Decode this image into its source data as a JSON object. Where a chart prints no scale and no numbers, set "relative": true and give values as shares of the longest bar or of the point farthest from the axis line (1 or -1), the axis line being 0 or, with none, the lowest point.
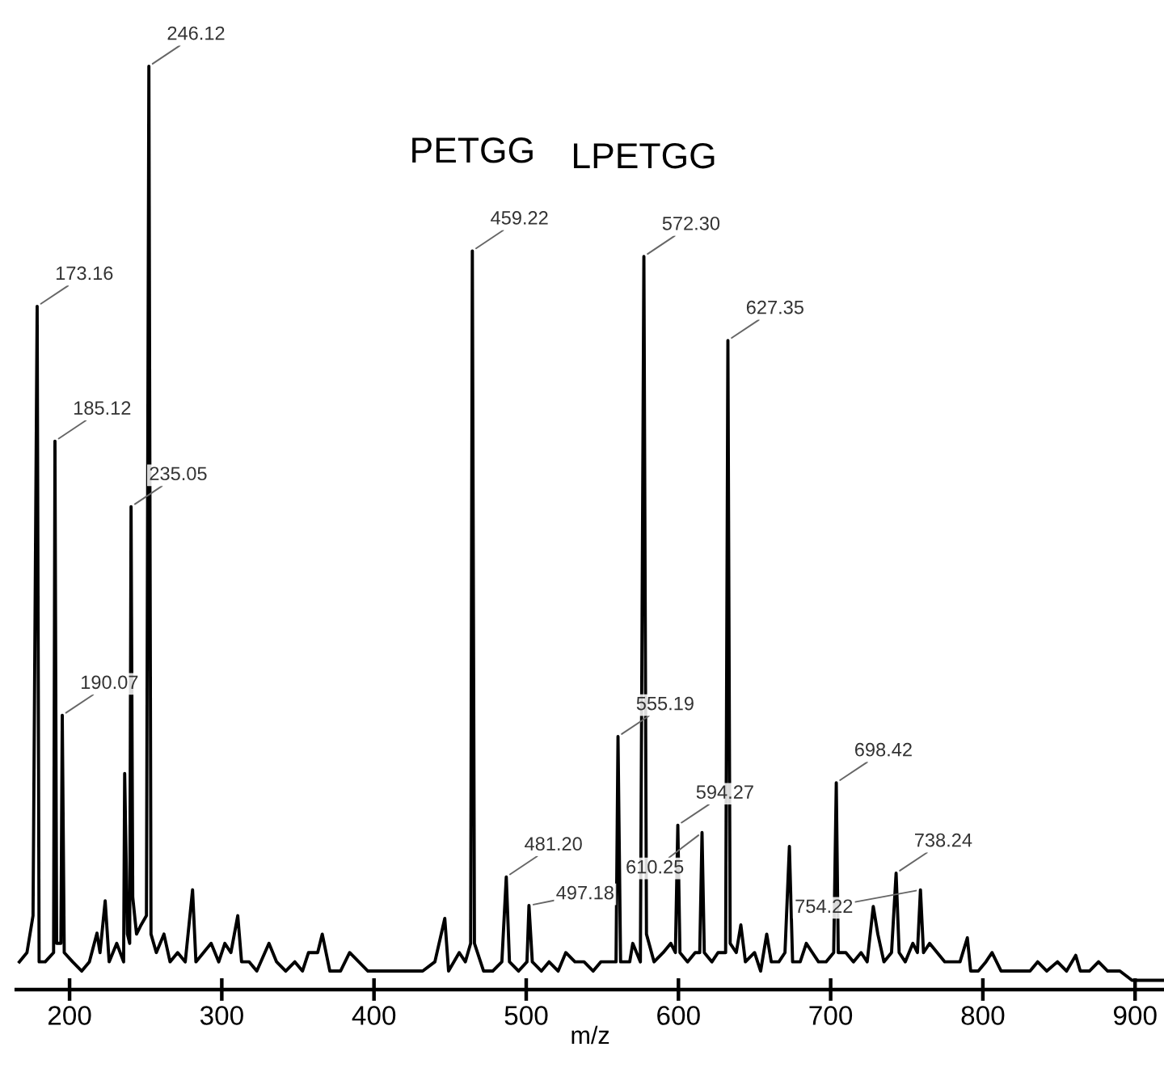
{
  "chart_data": {
    "type": "line",
    "relative": true,
    "xlabel": "m/z",
    "xlim": [
      165,
      919
    ],
    "xticks": [
      200,
      300,
      400,
      500,
      600,
      700,
      800,
      900
    ],
    "grid": false,
    "marker": "none",
    "line_style": "solid",
    "series": [
      {
        "color": "#000000",
        "x": [
          167,
          172,
          176,
          178.7,
          180,
          184,
          189.5,
          190.4,
          191.5,
          194.3,
          195.2,
          196.5,
          202,
          208,
          213,
          218,
          220,
          223.4,
          226,
          231,
          235.5,
          236.2,
          238,
          239.5,
          240.4,
          241.5,
          244,
          247,
          250.5,
          252.1,
          253.5,
          257,
          262,
          266,
          271,
          276,
          280.8,
          283,
          288,
          293,
          298,
          302,
          306,
          310.5,
          313,
          318,
          323,
          331,
          336,
          342,
          348,
          353,
          357,
          363,
          366,
          371,
          378,
          384,
          390,
          396,
          403,
          410,
          418,
          425,
          432,
          440,
          446.5,
          449,
          456,
          460,
          463.5,
          464.6,
          466,
          472,
          478,
          484,
          486.9,
          489,
          495,
          500.5,
          501.8,
          504,
          510,
          515,
          521,
          526,
          532,
          538,
          544,
          549,
          555,
          559,
          560.3,
          562,
          568,
          570,
          575,
          577.3,
          579,
          584,
          590,
          595,
          598,
          599.6,
          601,
          606,
          611,
          614,
          615.5,
          617,
          622,
          626,
          631,
          632.5,
          634,
          638,
          641,
          644,
          650,
          654,
          658,
          661,
          666,
          670,
          672.9,
          675,
          680,
          684,
          688,
          692,
          697,
          702,
          703.7,
          705,
          710,
          715,
          720,
          724,
          728,
          731,
          735,
          740,
          743,
          745,
          749,
          754,
          757,
          759,
          761,
          765,
          770,
          775,
          780,
          785,
          789.8,
          792,
          797,
          802,
          806,
          812,
          818,
          825,
          831,
          836,
          842,
          849,
          855,
          861,
          864,
          870,
          876,
          882,
          890,
          898,
          905,
          912,
          919
        ],
        "values": [
          0.03,
          0.04,
          0.08,
          0.74,
          0.03,
          0.03,
          0.04,
          0.594,
          0.05,
          0.05,
          0.297,
          0.04,
          0.03,
          0.02,
          0.03,
          0.061,
          0.04,
          0.096,
          0.03,
          0.05,
          0.03,
          0.234,
          0.06,
          0.05,
          0.523,
          0.1,
          0.06,
          0.07,
          0.08,
          1.0,
          0.06,
          0.04,
          0.06,
          0.03,
          0.04,
          0.03,
          0.108,
          0.03,
          0.04,
          0.05,
          0.03,
          0.05,
          0.04,
          0.08,
          0.03,
          0.03,
          0.02,
          0.05,
          0.03,
          0.02,
          0.03,
          0.02,
          0.04,
          0.04,
          0.06,
          0.02,
          0.02,
          0.04,
          0.03,
          0.02,
          0.02,
          0.02,
          0.02,
          0.02,
          0.02,
          0.03,
          0.077,
          0.02,
          0.04,
          0.03,
          0.05,
          0.8,
          0.05,
          0.02,
          0.02,
          0.03,
          0.122,
          0.03,
          0.02,
          0.03,
          0.091,
          0.03,
          0.02,
          0.03,
          0.02,
          0.04,
          0.03,
          0.03,
          0.02,
          0.03,
          0.03,
          0.03,
          0.274,
          0.03,
          0.03,
          0.05,
          0.03,
          0.794,
          0.06,
          0.03,
          0.04,
          0.05,
          0.04,
          0.178,
          0.04,
          0.03,
          0.04,
          0.04,
          0.17,
          0.04,
          0.03,
          0.04,
          0.04,
          0.703,
          0.05,
          0.04,
          0.07,
          0.03,
          0.04,
          0.02,
          0.06,
          0.03,
          0.03,
          0.04,
          0.155,
          0.03,
          0.03,
          0.05,
          0.04,
          0.03,
          0.03,
          0.04,
          0.224,
          0.04,
          0.04,
          0.03,
          0.04,
          0.03,
          0.09,
          0.06,
          0.03,
          0.04,
          0.126,
          0.04,
          0.03,
          0.05,
          0.04,
          0.108,
          0.04,
          0.05,
          0.04,
          0.03,
          0.03,
          0.03,
          0.056,
          0.02,
          0.02,
          0.03,
          0.04,
          0.02,
          0.02,
          0.02,
          0.02,
          0.03,
          0.02,
          0.03,
          0.02,
          0.037,
          0.02,
          0.02,
          0.03,
          0.02,
          0.02,
          0.01,
          0.01,
          0.01,
          0.01
        ]
      }
    ],
    "annotations": [
      {
        "text": "PETGG",
        "x": 464.6,
        "y": 0.8
      },
      {
        "text": "LPETGG",
        "x": 577.3,
        "y": 0.794
      },
      {
        "text": "173.16",
        "x": 178.7,
        "y": 0.74
      },
      {
        "text": "185.12",
        "x": 190.4,
        "y": 0.594
      },
      {
        "text": "190.07",
        "x": 195.2,
        "y": 0.297
      },
      {
        "text": "235.05",
        "x": 240.4,
        "y": 0.523
      },
      {
        "text": "246.12",
        "x": 252.1,
        "y": 1.0
      },
      {
        "text": "459.22",
        "x": 464.6,
        "y": 0.8
      },
      {
        "text": "481.20",
        "x": 486.9,
        "y": 0.122
      },
      {
        "text": "497.18",
        "x": 501.8,
        "y": 0.091
      },
      {
        "text": "555.19",
        "x": 560.3,
        "y": 0.274
      },
      {
        "text": "572.30",
        "x": 577.3,
        "y": 0.794
      },
      {
        "text": "594.27",
        "x": 599.6,
        "y": 0.178
      },
      {
        "text": "610.25",
        "x": 615.5,
        "y": 0.17
      },
      {
        "text": "627.35",
        "x": 632.5,
        "y": 0.703
      },
      {
        "text": "698.42",
        "x": 703.7,
        "y": 0.224
      },
      {
        "text": "738.24",
        "x": 743.0,
        "y": 0.126
      },
      {
        "text": "754.22",
        "x": 759.0,
        "y": 0.108
      }
    ]
  }
}
